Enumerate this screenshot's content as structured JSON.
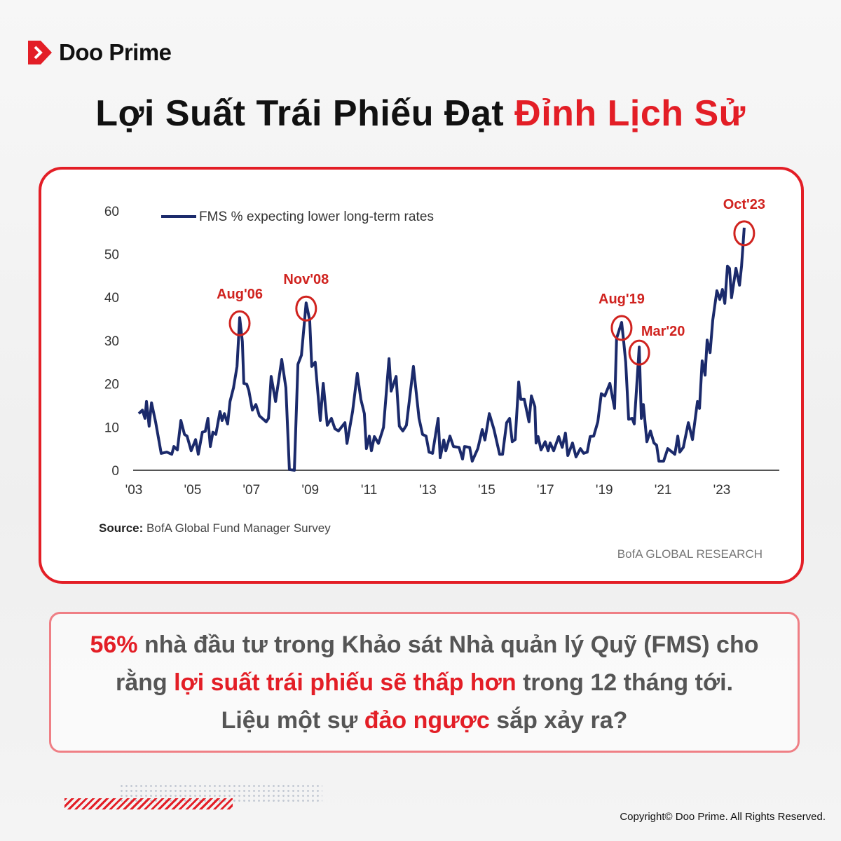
{
  "brand": {
    "name": "Doo Prime",
    "color": "#e31e26"
  },
  "title": {
    "part1": "Lợi Suất Trái Phiếu Đạt ",
    "part2": "Đỉnh Lịch Sử"
  },
  "chart_data": {
    "type": "line",
    "title": "",
    "xlabel": "",
    "ylabel": "",
    "xlim": [
      2003,
      2024.9
    ],
    "ylim": [
      0,
      60
    ],
    "yticks": [
      0,
      10,
      20,
      30,
      40,
      50,
      60
    ],
    "xticks": [
      {
        "value": 2003,
        "label": "'03"
      },
      {
        "value": 2005,
        "label": "'05"
      },
      {
        "value": 2007,
        "label": "'07"
      },
      {
        "value": 2009,
        "label": "'09"
      },
      {
        "value": 2011,
        "label": "'11"
      },
      {
        "value": 2013,
        "label": "'13"
      },
      {
        "value": 2015,
        "label": "'15"
      },
      {
        "value": 2017,
        "label": "'17"
      },
      {
        "value": 2019,
        "label": "'19"
      },
      {
        "value": 2021,
        "label": "'21"
      },
      {
        "value": 2023,
        "label": "'23"
      }
    ],
    "grid": false,
    "legend": "top-left",
    "series": [
      {
        "name": "FMS % expecting lower long-term rates",
        "color": "#1b2a6b",
        "points": [
          [
            2003.17,
            13.1
          ],
          [
            2003.29,
            13.9
          ],
          [
            2003.38,
            12
          ],
          [
            2003.43,
            15.9
          ],
          [
            2003.52,
            10.2
          ],
          [
            2003.6,
            15.6
          ],
          [
            2003.74,
            11.2
          ],
          [
            2003.93,
            3.9
          ],
          [
            2004.12,
            4.2
          ],
          [
            2004.29,
            3.7
          ],
          [
            2004.36,
            5.5
          ],
          [
            2004.48,
            4.7
          ],
          [
            2004.6,
            11.5
          ],
          [
            2004.72,
            8.3
          ],
          [
            2004.81,
            7.9
          ],
          [
            2004.95,
            4.5
          ],
          [
            2005.1,
            7.1
          ],
          [
            2005.19,
            3.7
          ],
          [
            2005.33,
            8.8
          ],
          [
            2005.43,
            9
          ],
          [
            2005.52,
            12
          ],
          [
            2005.6,
            5.5
          ],
          [
            2005.69,
            8.8
          ],
          [
            2005.79,
            8.3
          ],
          [
            2005.93,
            13.6
          ],
          [
            2006.0,
            11.5
          ],
          [
            2006.08,
            13.1
          ],
          [
            2006.19,
            10.7
          ],
          [
            2006.27,
            15.9
          ],
          [
            2006.39,
            19.1
          ],
          [
            2006.51,
            24
          ],
          [
            2006.6,
            35.3
          ],
          [
            2006.69,
            29.8
          ],
          [
            2006.74,
            20.1
          ],
          [
            2006.84,
            19.9
          ],
          [
            2006.91,
            18.5
          ],
          [
            2007.03,
            13.9
          ],
          [
            2007.15,
            15.2
          ],
          [
            2007.27,
            12.6
          ],
          [
            2007.5,
            11.2
          ],
          [
            2007.58,
            12
          ],
          [
            2007.67,
            21.7
          ],
          [
            2007.82,
            15.9
          ],
          [
            2008.03,
            25.6
          ],
          [
            2008.17,
            19.1
          ],
          [
            2008.29,
            0.2
          ],
          [
            2008.46,
            0
          ],
          [
            2008.58,
            24.5
          ],
          [
            2008.7,
            26.6
          ],
          [
            2008.86,
            38.7
          ],
          [
            2008.98,
            34.7
          ],
          [
            2009.05,
            24
          ],
          [
            2009.17,
            25
          ],
          [
            2009.34,
            11.5
          ],
          [
            2009.44,
            20.1
          ],
          [
            2009.58,
            10.4
          ],
          [
            2009.72,
            12
          ],
          [
            2009.84,
            9.6
          ],
          [
            2009.96,
            9.1
          ],
          [
            2010.18,
            11
          ],
          [
            2010.25,
            6.2
          ],
          [
            2010.44,
            13.6
          ],
          [
            2010.6,
            22.4
          ],
          [
            2010.72,
            16.4
          ],
          [
            2010.84,
            13.1
          ],
          [
            2010.91,
            5
          ],
          [
            2011.01,
            7.9
          ],
          [
            2011.08,
            4.5
          ],
          [
            2011.18,
            7.8
          ],
          [
            2011.32,
            6.2
          ],
          [
            2011.49,
            9.9
          ],
          [
            2011.68,
            25.8
          ],
          [
            2011.75,
            18.3
          ],
          [
            2011.92,
            21.7
          ],
          [
            2012.03,
            10.2
          ],
          [
            2012.15,
            9.1
          ],
          [
            2012.27,
            10.4
          ],
          [
            2012.51,
            24
          ],
          [
            2012.7,
            12
          ],
          [
            2012.82,
            8.3
          ],
          [
            2012.94,
            7.9
          ],
          [
            2013.04,
            4.2
          ],
          [
            2013.16,
            3.9
          ],
          [
            2013.35,
            12
          ],
          [
            2013.42,
            2.9
          ],
          [
            2013.54,
            7
          ],
          [
            2013.61,
            4.5
          ],
          [
            2013.75,
            7.9
          ],
          [
            2013.87,
            5.5
          ],
          [
            2014.06,
            5.3
          ],
          [
            2014.18,
            2.6
          ],
          [
            2014.25,
            5.5
          ],
          [
            2014.42,
            5.3
          ],
          [
            2014.51,
            2.1
          ],
          [
            2014.7,
            5
          ],
          [
            2014.85,
            9.4
          ],
          [
            2014.94,
            7
          ],
          [
            2015.09,
            13.1
          ],
          [
            2015.25,
            9.4
          ],
          [
            2015.44,
            3.7
          ],
          [
            2015.54,
            3.7
          ],
          [
            2015.68,
            11
          ],
          [
            2015.78,
            12
          ],
          [
            2015.87,
            6.6
          ],
          [
            2015.97,
            7.1
          ],
          [
            2016.09,
            20.4
          ],
          [
            2016.16,
            16.4
          ],
          [
            2016.28,
            16.4
          ],
          [
            2016.44,
            11.2
          ],
          [
            2016.52,
            17.2
          ],
          [
            2016.64,
            14.7
          ],
          [
            2016.68,
            6.3
          ],
          [
            2016.75,
            7.8
          ],
          [
            2016.85,
            4.7
          ],
          [
            2016.99,
            6.6
          ],
          [
            2017.09,
            4.5
          ],
          [
            2017.16,
            6.3
          ],
          [
            2017.28,
            4.5
          ],
          [
            2017.45,
            7.8
          ],
          [
            2017.57,
            5.3
          ],
          [
            2017.68,
            8.6
          ],
          [
            2017.76,
            3.4
          ],
          [
            2017.92,
            6.3
          ],
          [
            2018.04,
            3.1
          ],
          [
            2018.19,
            5
          ],
          [
            2018.3,
            3.9
          ],
          [
            2018.42,
            4.2
          ],
          [
            2018.52,
            7.8
          ],
          [
            2018.64,
            7.9
          ],
          [
            2018.78,
            11.2
          ],
          [
            2018.9,
            17.7
          ],
          [
            2019.02,
            17.2
          ],
          [
            2019.19,
            20.1
          ],
          [
            2019.35,
            14.3
          ],
          [
            2019.42,
            30.5
          ],
          [
            2019.59,
            34.2
          ],
          [
            2019.66,
            29.8
          ],
          [
            2019.73,
            25
          ],
          [
            2019.83,
            11.8
          ],
          [
            2019.95,
            12
          ],
          [
            2020.02,
            10.7
          ],
          [
            2020.19,
            28.5
          ],
          [
            2020.26,
            12
          ],
          [
            2020.33,
            15.2
          ],
          [
            2020.45,
            6.6
          ],
          [
            2020.57,
            9.1
          ],
          [
            2020.69,
            6.3
          ],
          [
            2020.78,
            5.8
          ],
          [
            2020.86,
            2.1
          ],
          [
            2021.02,
            2.1
          ],
          [
            2021.16,
            5
          ],
          [
            2021.4,
            3.7
          ],
          [
            2021.5,
            7.9
          ],
          [
            2021.57,
            4.2
          ],
          [
            2021.69,
            5.3
          ],
          [
            2021.86,
            11
          ],
          [
            2022.0,
            7.1
          ],
          [
            2022.17,
            15.9
          ],
          [
            2022.24,
            14.3
          ],
          [
            2022.33,
            25.3
          ],
          [
            2022.43,
            22
          ],
          [
            2022.5,
            30.1
          ],
          [
            2022.6,
            27.2
          ],
          [
            2022.69,
            34.7
          ],
          [
            2022.83,
            41.5
          ],
          [
            2022.93,
            39.5
          ],
          [
            2023.02,
            41.8
          ],
          [
            2023.1,
            38.6
          ],
          [
            2023.19,
            47.2
          ],
          [
            2023.26,
            46.7
          ],
          [
            2023.33,
            39.9
          ],
          [
            2023.48,
            46.7
          ],
          [
            2023.6,
            42.8
          ],
          [
            2023.67,
            47.2
          ],
          [
            2023.76,
            56.1
          ]
        ]
      }
    ],
    "annotations": [
      {
        "label": "Aug'06",
        "x": 2006.6,
        "y": 35.3
      },
      {
        "label": "Nov'08",
        "x": 2008.86,
        "y": 38.7
      },
      {
        "label": "Aug'19",
        "x": 2019.59,
        "y": 34.2
      },
      {
        "label": "Mar'20",
        "x": 2020.19,
        "y": 28.5
      },
      {
        "label": "Oct'23",
        "x": 2023.76,
        "y": 56.1
      }
    ],
    "annotation_color": "#d0231f",
    "source_label": "Source:",
    "source_text": " BofA Global Fund Manager Survey",
    "credit": "BofA GLOBAL RESEARCH"
  },
  "note": {
    "l1a": "56%",
    "l1b": " nhà đầu tư trong Khảo sát Nhà quản lý Quỹ (FMS) cho",
    "l2a": "rằng ",
    "l2b": "lợi suất trái phiếu sẽ thấp hơn",
    "l2c": " trong 12 tháng tới.",
    "l3a": "Liệu một sự ",
    "l3b": "đảo ngược",
    "l3c": " sắp xảy ra?"
  },
  "copyright": "Copyright© Doo Prime. All Rights Reserved."
}
